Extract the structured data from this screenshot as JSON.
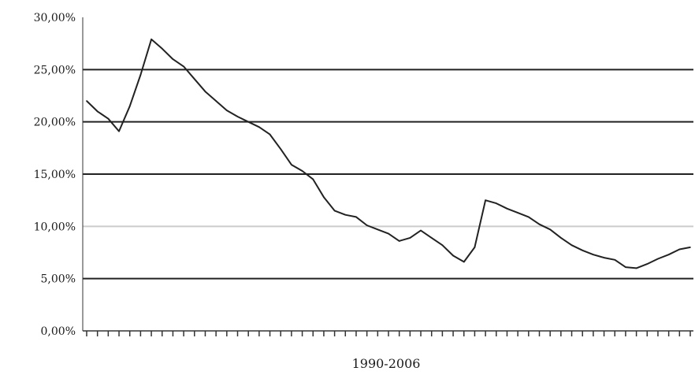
{
  "chart_data": {
    "type": "line",
    "title": "",
    "xlabel": "1990-2006",
    "ylabel": "",
    "ylim": [
      0,
      30
    ],
    "yticks": [
      0,
      5,
      10,
      15,
      20,
      25,
      30
    ],
    "ytick_labels": [
      "0,00%",
      "5,00%",
      "10,00%",
      "15,00%",
      "20,00%",
      "25,00%",
      "30,00%"
    ],
    "grid": "horizontal",
    "legend": "none",
    "line_color": "#222222",
    "grid_color": "#222222",
    "grid_light_color": "#cccccc",
    "series": [
      {
        "values": [
          22.0,
          21.0,
          20.3,
          19.1,
          21.5,
          24.5,
          27.9,
          27.0,
          26.0,
          25.3,
          24.1,
          22.9,
          22.0,
          21.1,
          20.5,
          20.0,
          19.5,
          18.8,
          17.4,
          15.9,
          15.3,
          14.5,
          12.8,
          11.5,
          11.1,
          10.9,
          10.1,
          9.7,
          9.3,
          8.6,
          8.9,
          9.6,
          8.9,
          8.2,
          7.2,
          6.6,
          8.0,
          12.5,
          12.2,
          11.7,
          11.3,
          10.9,
          10.2,
          9.7,
          8.9,
          8.2,
          7.7,
          7.3,
          7.0,
          6.8,
          6.1,
          6.0,
          6.4,
          6.9,
          7.3,
          7.8,
          8.0
        ]
      }
    ]
  }
}
